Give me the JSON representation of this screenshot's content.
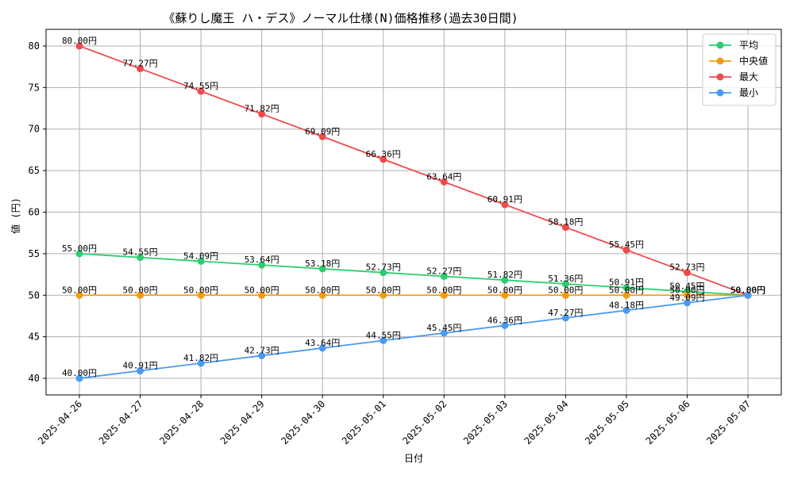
{
  "chart_data": {
    "type": "line",
    "title": "《蘇りし魔王 ハ・デス》ノーマル仕様(N)価格推移(過去30日間)",
    "xlabel": "日付",
    "ylabel": "値 (円)",
    "ylim": [
      38,
      82
    ],
    "yticks": [
      40,
      45,
      50,
      55,
      60,
      65,
      70,
      75,
      80
    ],
    "grid": true,
    "legend_position": "top-right",
    "label_suffix": "円",
    "categories": [
      "2025-04-26",
      "2025-04-27",
      "2025-04-28",
      "2025-04-29",
      "2025-04-30",
      "2025-05-01",
      "2025-05-02",
      "2025-05-03",
      "2025-05-04",
      "2025-05-05",
      "2025-05-06",
      "2025-05-07"
    ],
    "series": [
      {
        "name": "平均",
        "color": "#2ecc71",
        "values": [
          55.0,
          54.55,
          54.09,
          53.64,
          53.18,
          52.73,
          52.27,
          51.82,
          51.36,
          50.91,
          50.45,
          50.0
        ]
      },
      {
        "name": "中央値",
        "color": "#f39c12",
        "values": [
          50.0,
          50.0,
          50.0,
          50.0,
          50.0,
          50.0,
          50.0,
          50.0,
          50.0,
          50.0,
          50.0,
          50.0
        ]
      },
      {
        "name": "最大",
        "color": "#f04a4a",
        "values": [
          80.0,
          77.27,
          74.55,
          71.82,
          69.09,
          66.36,
          63.64,
          60.91,
          58.18,
          55.45,
          52.73,
          50.0
        ]
      },
      {
        "name": "最小",
        "color": "#4a9af0",
        "values": [
          40.0,
          40.91,
          41.82,
          42.73,
          43.64,
          44.55,
          45.45,
          46.36,
          47.27,
          48.18,
          49.09,
          50.0
        ]
      }
    ]
  }
}
